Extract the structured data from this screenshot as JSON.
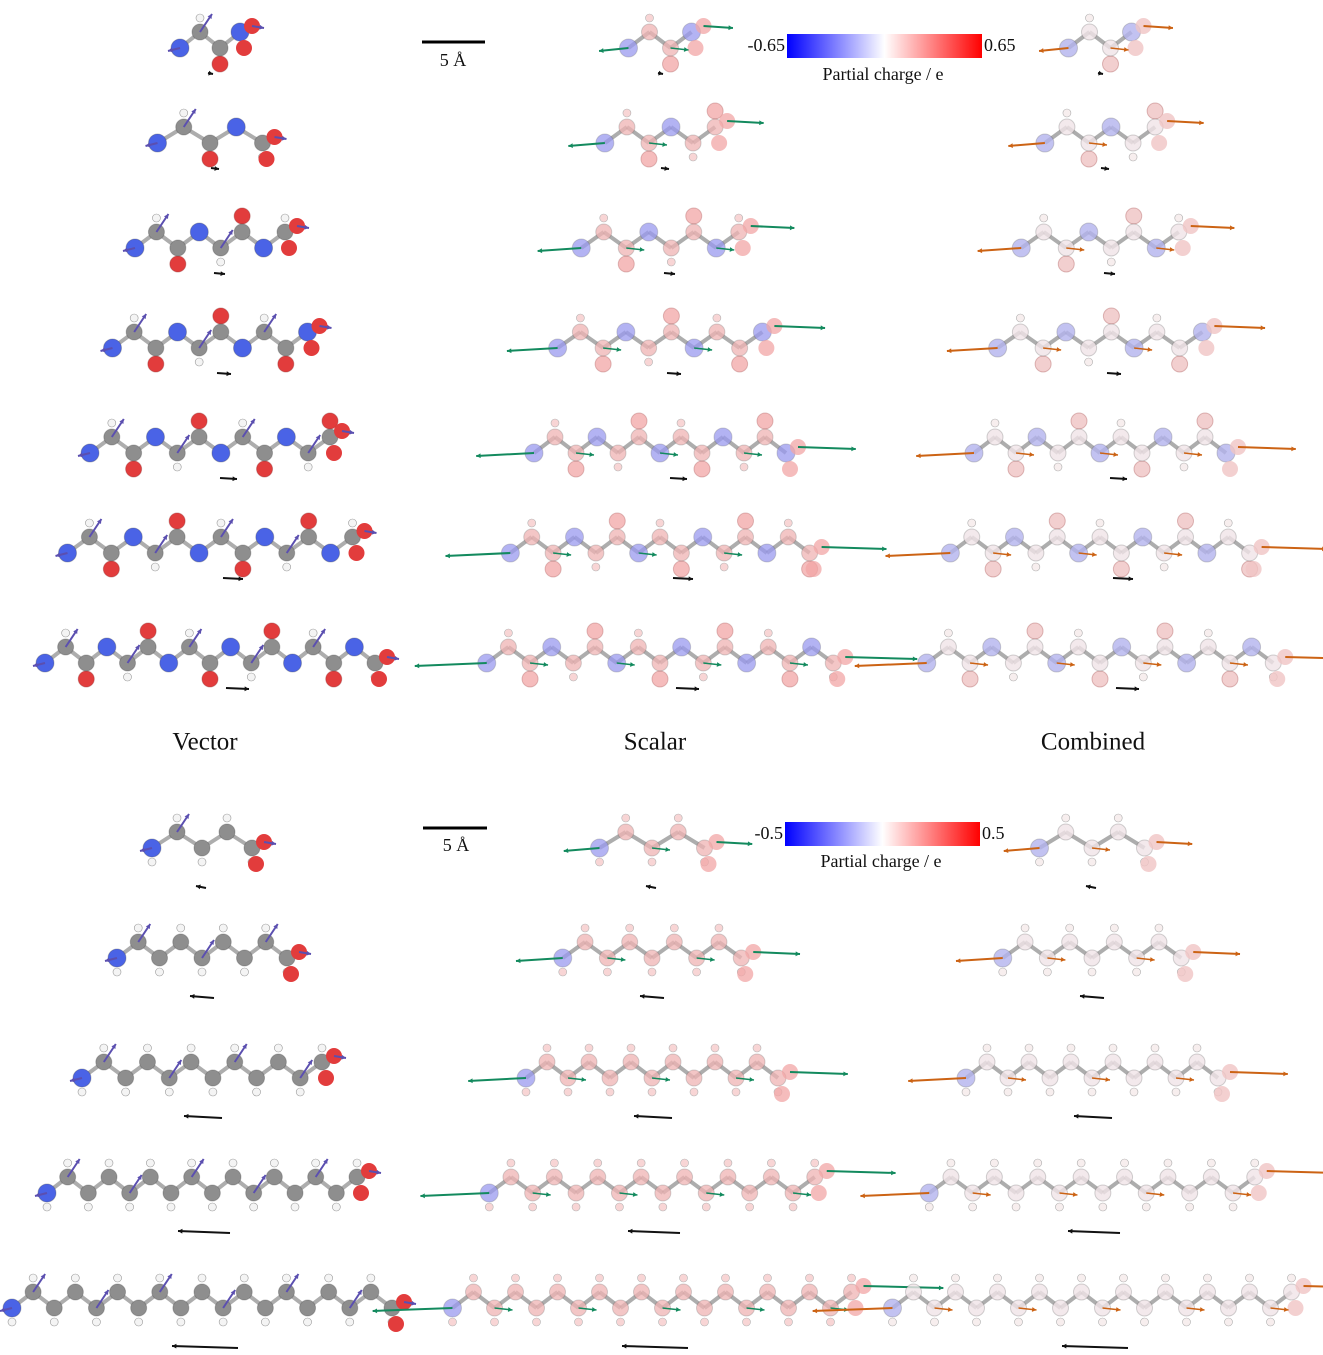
{
  "top_panel": {
    "scale_bar": "5 Å",
    "colorbar": {
      "min": "-0.65",
      "max": "0.65",
      "label": "Partial charge / e"
    }
  },
  "column_labels": [
    "Vector",
    "Scalar",
    "Combined"
  ],
  "bottom_panel": {
    "scale_bar": "5 Å",
    "colorbar": {
      "min": "-0.5",
      "max": "0.5",
      "label": "Partial charge / e"
    }
  }
}
